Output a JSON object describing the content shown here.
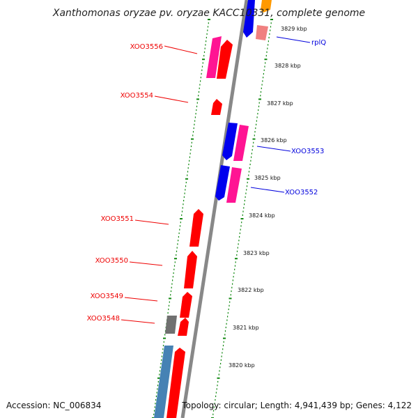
{
  "title": "Xanthomonas oryzae pv. oryzae KACC10331, complete genome",
  "accession": "Accession: NC_006834",
  "topology": "Topology: circular; Length: 4,941,439 bp; Genes: 4,122",
  "colors": {
    "backbone": "#888888",
    "forward_gene": "#ff0000",
    "reverse_gene": "#0000ff",
    "pink_gene": "#ff1493",
    "salmon_gene": "#f08080",
    "steel_gene": "#4682b4",
    "gray_gene": "#707070",
    "orange_gene": "#ff9900",
    "tick": "#118811",
    "label_forward": "#ee0000",
    "label_reverse": "#0000dd"
  },
  "scale_labels": [
    "3829 kbp",
    "3828 kbp",
    "3827 kbp",
    "3826 kbp",
    "3825 kbp",
    "3824 kbp",
    "3823 kbp",
    "3822 kbp",
    "3821 kbp",
    "3820 kbp"
  ],
  "gene_labels_left": [
    "XOO3556",
    "XOO3554",
    "XOO3551",
    "XOO3550",
    "XOO3549",
    "XOO3548"
  ],
  "gene_labels_right": [
    "rplQ",
    "XOO3553",
    "XOO3552"
  ]
}
